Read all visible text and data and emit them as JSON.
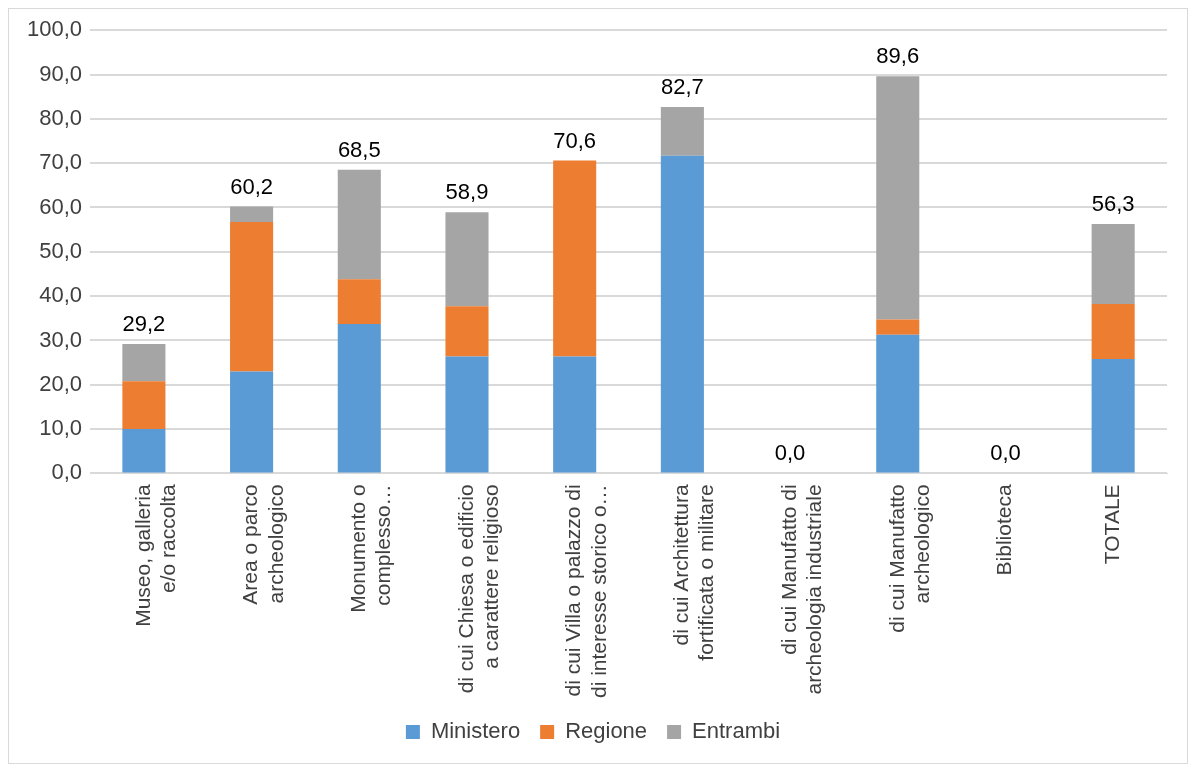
{
  "chart_data": {
    "type": "bar",
    "stacked": true,
    "categories": [
      "Museo, galleria e/o raccolta",
      "Area o parco archeologico",
      "Monumento o complesso…",
      "di cui Chiesa o edificio a carattere religioso",
      "di cui Villa o palazzo di di interesse storico o…",
      "di cui Architettura fortificata o militare",
      "di cui Manufatto di archeologia industriale",
      "di cui Manufatto archeologico",
      "Biblioteca",
      "TOTALE"
    ],
    "series": [
      {
        "name": "Ministero",
        "color": "#5b9bd5",
        "values": [
          10.0,
          23.0,
          33.7,
          26.4,
          26.4,
          71.7,
          0,
          31.3,
          0,
          25.8
        ]
      },
      {
        "name": "Regione",
        "color": "#ed7d31",
        "values": [
          10.8,
          33.7,
          10.1,
          11.3,
          44.2,
          0,
          0,
          3.4,
          0,
          12.4
        ]
      },
      {
        "name": "Entrambi",
        "color": "#a5a5a5",
        "values": [
          8.4,
          3.5,
          24.7,
          21.2,
          0,
          11.0,
          0,
          54.9,
          0,
          18.1
        ]
      }
    ],
    "totals": [
      "29,2",
      "60,2",
      "68,5",
      "58,9",
      "70,6",
      "82,7",
      "0,0",
      "89,6",
      "0,0",
      "56,3"
    ],
    "ylim": [
      0,
      100
    ],
    "yticks": [
      {
        "value": 0,
        "label": "0,0"
      },
      {
        "value": 10,
        "label": "10,0"
      },
      {
        "value": 20,
        "label": "20,0"
      },
      {
        "value": 30,
        "label": "30,0"
      },
      {
        "value": 40,
        "label": "40,0"
      },
      {
        "value": 50,
        "label": "50,0"
      },
      {
        "value": 60,
        "label": "60,0"
      },
      {
        "value": 70,
        "label": "70,0"
      },
      {
        "value": 80,
        "label": "80,0"
      },
      {
        "value": 90,
        "label": "90,0"
      },
      {
        "value": 100,
        "label": "100,0"
      }
    ],
    "grid": "y",
    "legend": "bottom"
  }
}
